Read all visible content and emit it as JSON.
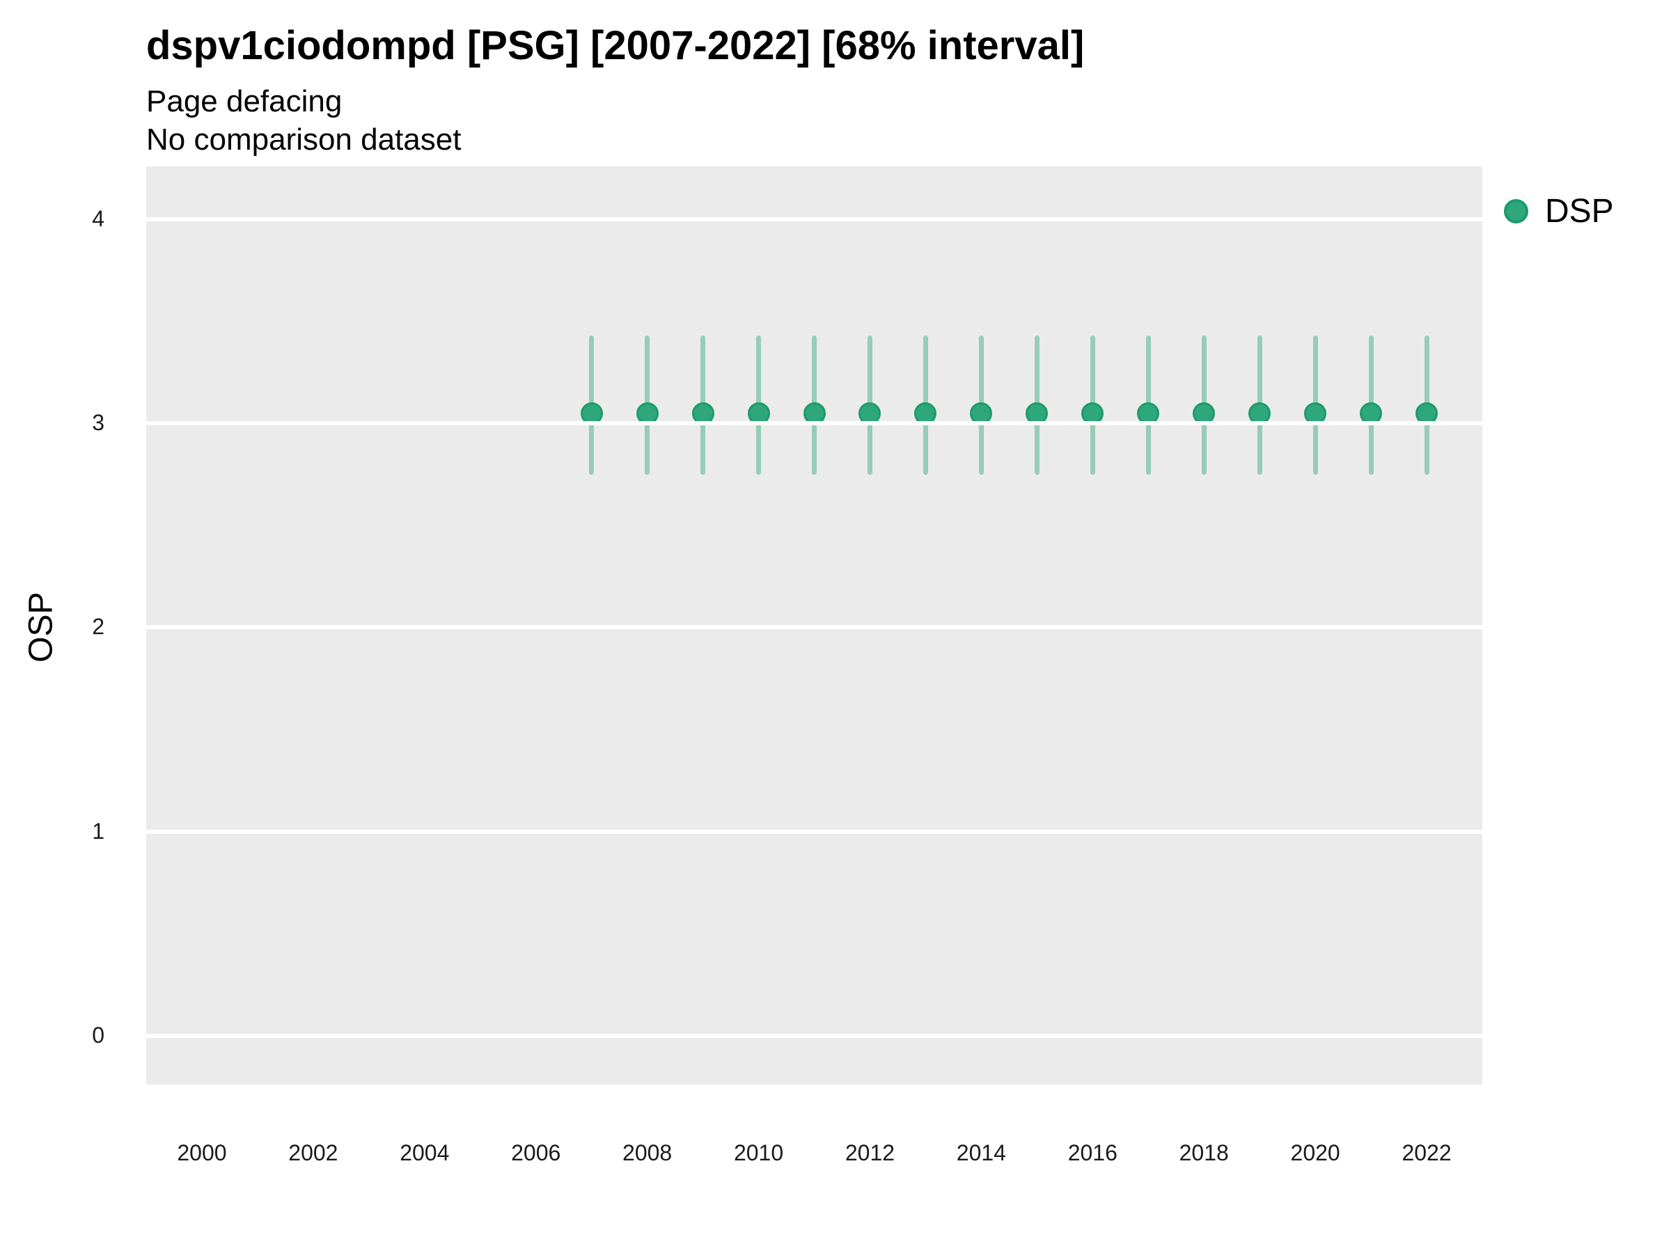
{
  "header": {
    "title": "dspv1ciodompd [PSG] [2007-2022] [68% interval]",
    "subtitle": "Page defacing",
    "note": "No comparison dataset"
  },
  "legend": {
    "position": "right",
    "items": [
      {
        "label": "DSP",
        "marker": "circle",
        "color": "#2EA77C"
      }
    ]
  },
  "colors": {
    "panel_background": "#EBEBEB",
    "gridline": "#FFFFFF",
    "point_fill": "#2EA77C",
    "point_stroke": "#1C9A6C",
    "errorbar": "rgba(46, 167, 124, 0.45)",
    "tick_text": "#1a1a1a",
    "title_text": "#000000"
  },
  "chart_data": {
    "type": "scatter",
    "title": "dspv1ciodompd [PSG] [2007-2022] [68% interval]",
    "subtitle": "Page defacing",
    "note": "No comparison dataset",
    "xlabel": "",
    "ylabel": "OSP",
    "grid": "horizontal-only",
    "legend_position": "right",
    "interval_label": "68% interval",
    "xlim": [
      1999,
      2023
    ],
    "ylim": [
      -0.24,
      4.26
    ],
    "x_ticks": [
      2000,
      2002,
      2004,
      2006,
      2008,
      2010,
      2012,
      2014,
      2016,
      2018,
      2020,
      2022
    ],
    "y_ticks": [
      0,
      1,
      2,
      3,
      4
    ],
    "series": [
      {
        "name": "DSP",
        "x": [
          2007,
          2008,
          2009,
          2010,
          2011,
          2012,
          2013,
          2014,
          2015,
          2016,
          2017,
          2018,
          2019,
          2020,
          2021,
          2022
        ],
        "y": [
          3.05,
          3.05,
          3.05,
          3.05,
          3.05,
          3.05,
          3.05,
          3.05,
          3.05,
          3.05,
          3.05,
          3.05,
          3.05,
          3.05,
          3.05,
          3.05
        ],
        "y_lo": [
          2.75,
          2.75,
          2.75,
          2.75,
          2.75,
          2.75,
          2.75,
          2.75,
          2.75,
          2.75,
          2.75,
          2.75,
          2.75,
          2.75,
          2.75,
          2.75
        ],
        "y_hi": [
          3.43,
          3.43,
          3.43,
          3.43,
          3.43,
          3.43,
          3.43,
          3.43,
          3.43,
          3.43,
          3.43,
          3.43,
          3.43,
          3.43,
          3.43,
          3.43
        ]
      }
    ]
  }
}
